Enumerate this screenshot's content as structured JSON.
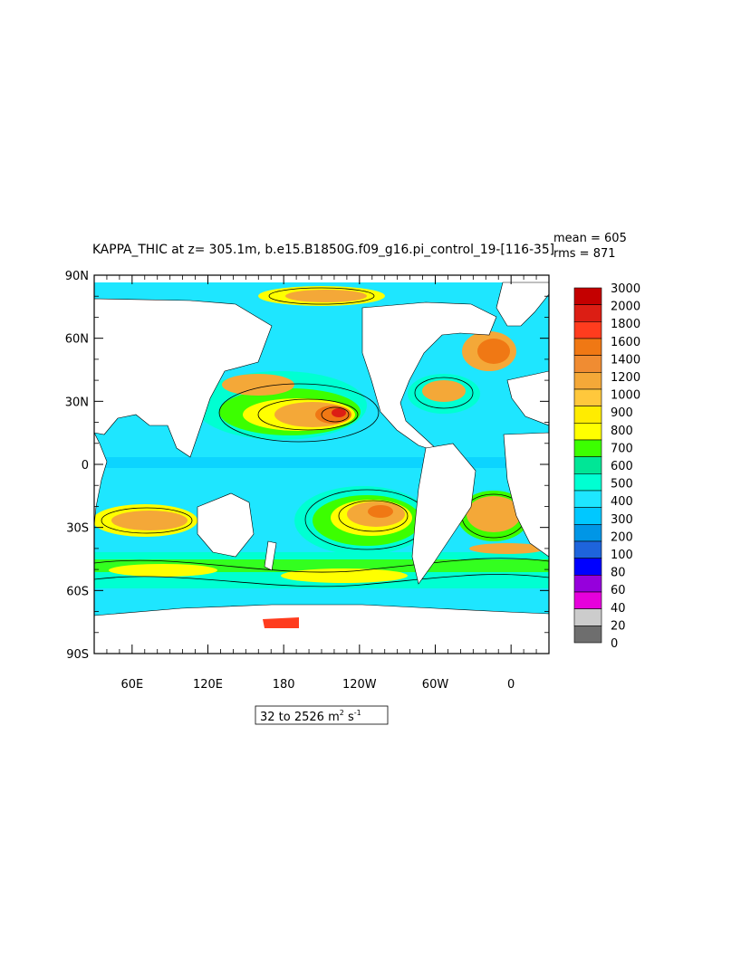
{
  "title": "KAPPA_THIC at z= 305.1m, b.e15.B1850G.f09_g16.pi_control_19-[116-35]",
  "stats": {
    "mean": "mean = 605",
    "rms": "rms = 871"
  },
  "range_label": {
    "prefix": "32 to 2526 m",
    "sup1": "2",
    "mid": " s",
    "sup2": "-1"
  },
  "chart_data": {
    "type": "heatmap",
    "y_ticks": [
      "90N",
      "60N",
      "30N",
      "0",
      "30S",
      "60S",
      "90S"
    ],
    "x_ticks": [
      "60E",
      "120E",
      "180",
      "120W",
      "60W",
      "0"
    ],
    "colorbar": {
      "levels": [
        "3000",
        "2000",
        "1800",
        "1600",
        "1400",
        "1200",
        "1000",
        "900",
        "800",
        "700",
        "600",
        "500",
        "400",
        "300",
        "200",
        "100",
        "80",
        "60",
        "40",
        "20",
        "0"
      ],
      "colors": [
        "#c40000",
        "#dc1e14",
        "#ff3c1e",
        "#f07814",
        "#f08c32",
        "#f4a838",
        "#ffc83c",
        "#ffec00",
        "#ffff00",
        "#3cff00",
        "#00e696",
        "#00ffd2",
        "#1ee6ff",
        "#00c8ff",
        "#0096e6",
        "#1e64dc",
        "#0000ff",
        "#9600dc",
        "#e600dc",
        "#cccccc",
        "#6e6e6e"
      ]
    }
  }
}
